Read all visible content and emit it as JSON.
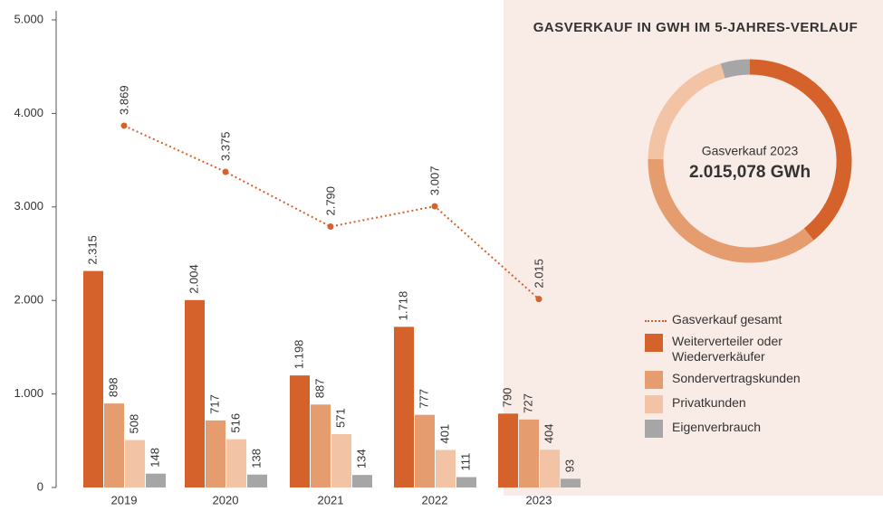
{
  "chart_data": {
    "type": "bar",
    "categories": [
      "2019",
      "2020",
      "2021",
      "2022",
      "2023"
    ],
    "ylim": [
      0,
      5000
    ],
    "yticks": [
      0,
      {
        "value": 1000,
        "label": "1.000"
      },
      {
        "value": 2000,
        "label": "2.000"
      },
      {
        "value": 3000,
        "label": "3.000"
      },
      {
        "value": 4000,
        "label": "4.000"
      },
      {
        "value": 5000,
        "label": "5.000"
      }
    ],
    "series": [
      {
        "name": "Weiterverteiler oder Wiederverkäufer",
        "color": "#d4622a",
        "values": [
          2315,
          2004,
          1198,
          1718,
          790
        ],
        "value_labels": [
          "2.315",
          "2.004",
          "1.198",
          "1.718",
          "790"
        ]
      },
      {
        "name": "Sondervertragskunden",
        "color": "#e59c6e",
        "values": [
          898,
          717,
          887,
          777,
          727
        ]
      },
      {
        "name": "Privatkunden",
        "color": "#f2c4a5",
        "values": [
          508,
          516,
          571,
          401,
          404
        ]
      },
      {
        "name": "Eigenverbrauch",
        "color": "#a6a6a6",
        "values": [
          148,
          138,
          134,
          111,
          93
        ]
      },
      {
        "name": "Gasverkauf gesamt",
        "type": "line",
        "color": "#d4622a",
        "values": [
          3869,
          3375,
          2790,
          3007,
          2015
        ],
        "value_labels": [
          "3.869",
          "3.375",
          "2.790",
          "3.007",
          "2.015"
        ]
      }
    ],
    "donut": {
      "title": "GASVERKAUF IN GWH IM 5-JAHRES-VERLAUF",
      "label": "Gasverkauf 2023",
      "total_label": "2.015,078 GWh"
    }
  }
}
